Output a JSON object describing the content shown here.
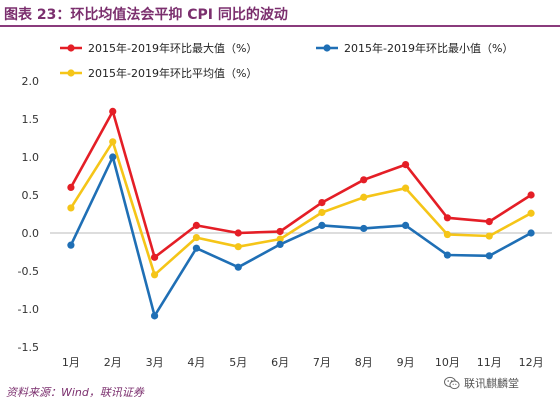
{
  "title": "图表 23：环比均值法会平抑 CPI 同比的波动",
  "source": "资料来源：Wind，联讯证券",
  "watermark": "联讯麒麟堂",
  "watermark_icon": "wechat-icon",
  "chart_data": {
    "type": "line",
    "categories": [
      "1月",
      "2月",
      "3月",
      "4月",
      "5月",
      "6月",
      "7月",
      "8月",
      "9月",
      "10月",
      "11月",
      "12月"
    ],
    "ylim": [
      -1.5,
      2.0
    ],
    "yticks": [
      "2.0",
      "1.5",
      "1.0",
      "0.5",
      "0.0",
      "-0.5",
      "-1.0",
      "-1.5"
    ],
    "grid": false,
    "legend_position": "top",
    "series": [
      {
        "name": "2015年-2019年环比最大值（%）",
        "color": "#e41e26",
        "values": [
          0.6,
          1.6,
          -0.32,
          0.1,
          0.0,
          0.02,
          0.4,
          0.7,
          0.9,
          0.2,
          0.15,
          0.5
        ]
      },
      {
        "name": "2015年-2019年环比最小值（%）",
        "color": "#1f6fb5",
        "values": [
          -0.16,
          1.0,
          -1.09,
          -0.2,
          -0.45,
          -0.15,
          0.1,
          0.06,
          0.1,
          -0.29,
          -0.3,
          0.0
        ]
      },
      {
        "name": "2015年-2019年环比平均值（%）",
        "color": "#f5c518",
        "values": [
          0.33,
          1.2,
          -0.55,
          -0.06,
          -0.18,
          -0.08,
          0.27,
          0.47,
          0.59,
          -0.02,
          -0.04,
          0.26
        ]
      }
    ]
  }
}
